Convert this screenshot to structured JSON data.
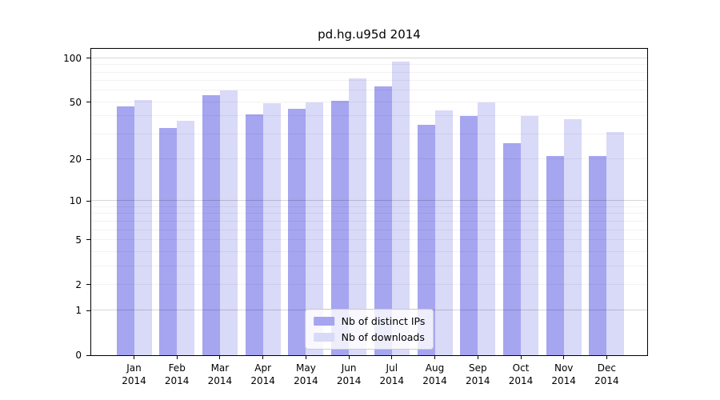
{
  "title": "pd.hg.u95d 2014",
  "chart_data": {
    "type": "bar",
    "title": "pd.hg.u95d 2014",
    "categories": [
      "Jan 2014",
      "Feb 2014",
      "Mar 2014",
      "Apr 2014",
      "May 2014",
      "Jun 2014",
      "Jul 2014",
      "Aug 2014",
      "Sep 2014",
      "Oct 2014",
      "Nov 2014",
      "Dec 2014"
    ],
    "series": [
      {
        "name": "Nb of distinct IPs",
        "color": "#a5a5f0",
        "values": [
          47,
          33,
          56,
          41,
          45,
          51,
          64,
          35,
          40,
          26,
          21,
          21
        ]
      },
      {
        "name": "Nb of downloads",
        "color": "#d9d9f8",
        "values": [
          52,
          37,
          60,
          49,
          50,
          73,
          95,
          44,
          50,
          40,
          38,
          31
        ]
      }
    ],
    "xlabel": "",
    "ylabel": "",
    "yscale": "log1p",
    "ylim": [
      0,
      116
    ],
    "yticks": [
      0,
      1,
      2,
      5,
      10,
      20,
      50,
      100
    ],
    "grid": true,
    "grid_major_at": [
      1,
      10,
      100
    ],
    "grid_minor_at": [
      2,
      3,
      4,
      5,
      6,
      7,
      8,
      9,
      20,
      30,
      40,
      50,
      60,
      70,
      80,
      90
    ],
    "legend_position": "lower center",
    "bar_colors": {
      "distinct_ips": "#a5a5f0",
      "downloads": "#d9d9f8"
    }
  }
}
